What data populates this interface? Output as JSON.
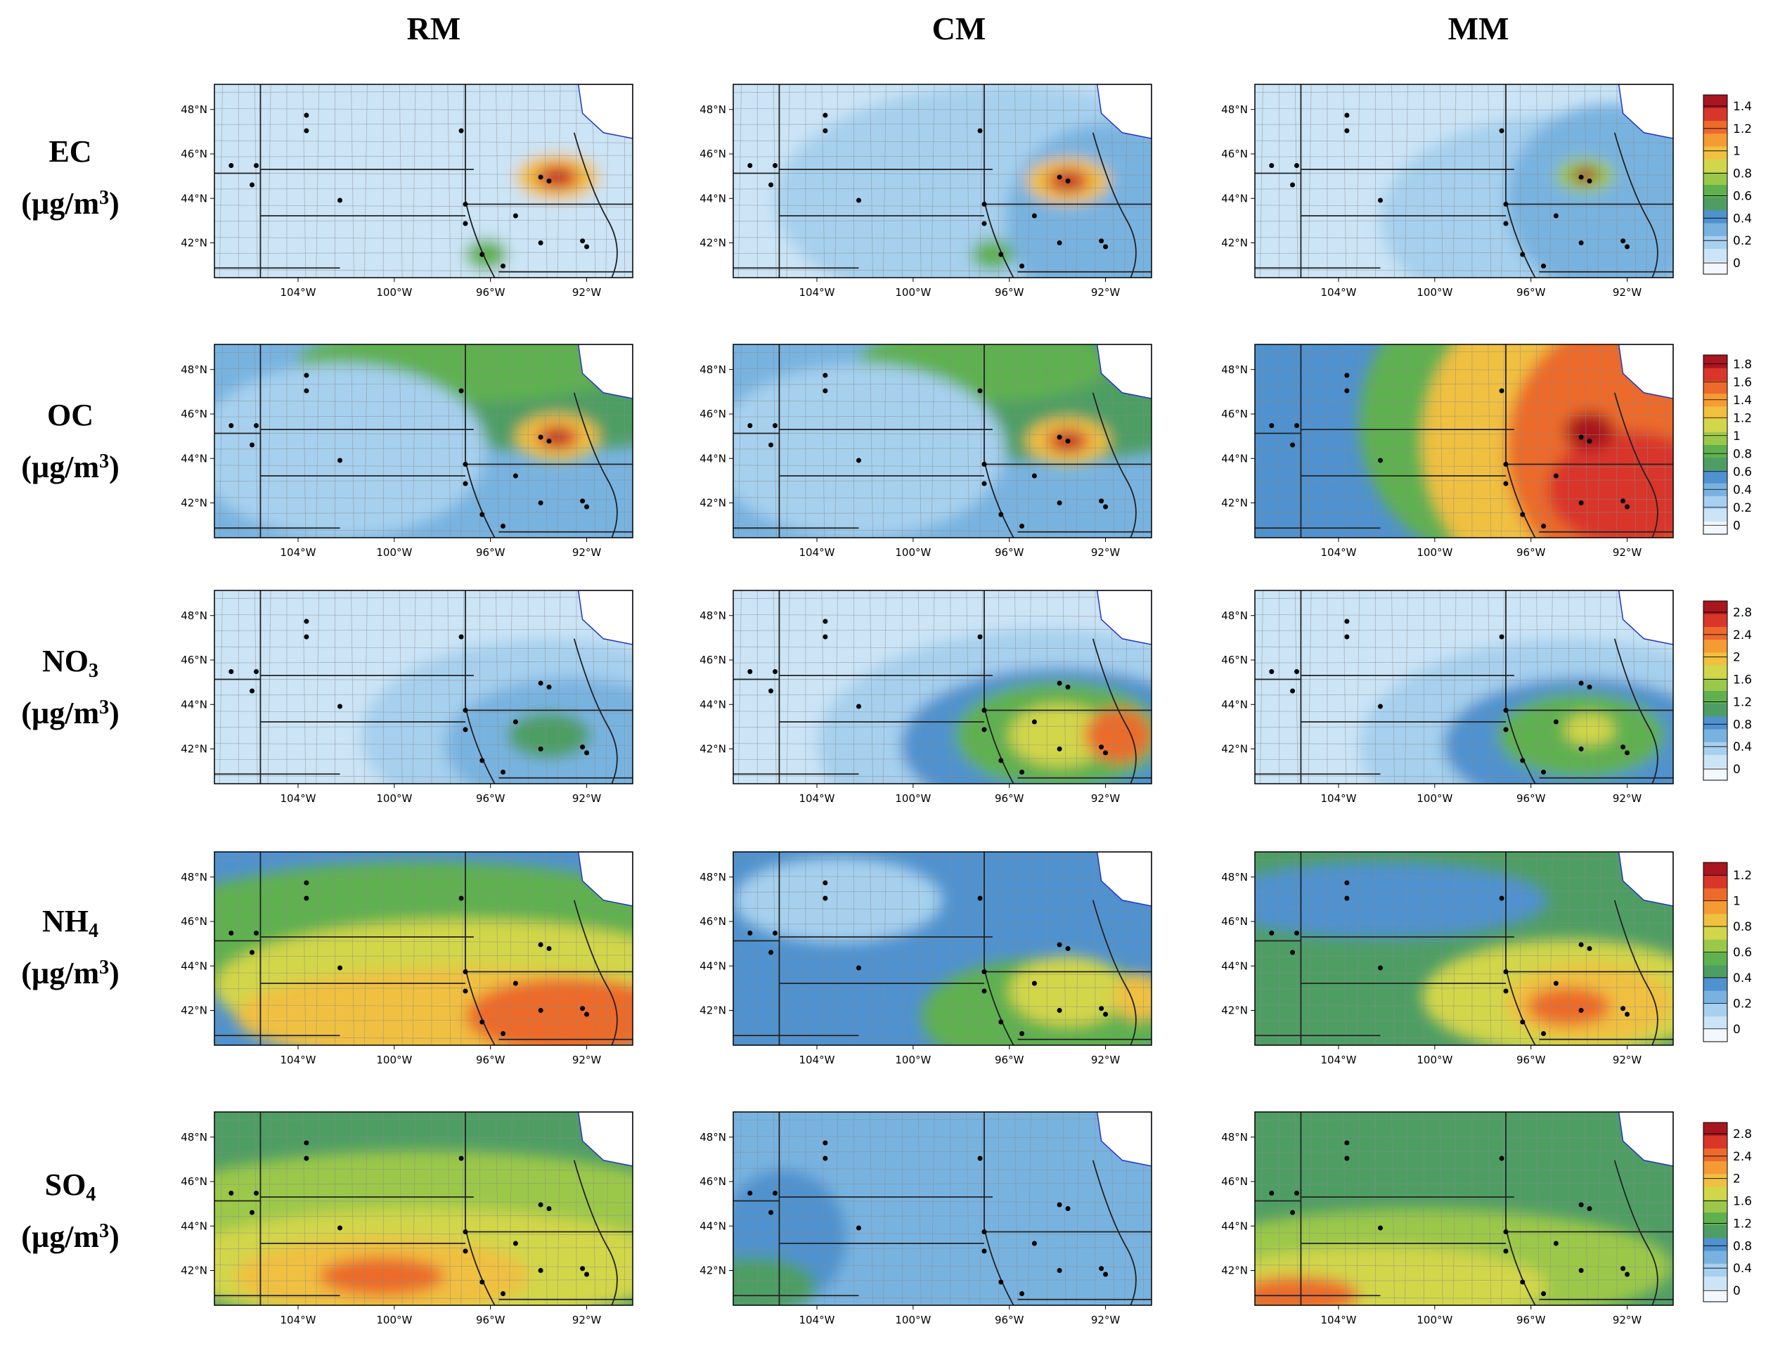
{
  "columns": [
    "RM",
    "CM",
    "MM"
  ],
  "rows": [
    {
      "species": "EC",
      "sub": "",
      "unit_pre": "(µg/m",
      "unit_sup": "3",
      "unit_post": ")"
    },
    {
      "species": "OC",
      "sub": "",
      "unit_pre": "(µg/m",
      "unit_sup": "3",
      "unit_post": ")"
    },
    {
      "species": "NO",
      "sub": "3",
      "unit_pre": "(µg/m",
      "unit_sup": "3",
      "unit_post": ")"
    },
    {
      "species": "NH",
      "sub": "4",
      "unit_pre": "(µg/m",
      "unit_sup": "3",
      "unit_post": ")"
    },
    {
      "species": "SO",
      "sub": "4",
      "unit_pre": "(µg/m",
      "unit_sup": "3",
      "unit_post": ")"
    }
  ],
  "lat_ticks": [
    "48°N",
    "46°N",
    "44°N",
    "42°N"
  ],
  "lon_ticks": [
    "104°W",
    "100°W",
    "96°W",
    "92°W"
  ],
  "colorbars": [
    {
      "labels": [
        "1.4",
        "1.2",
        "1",
        "0.8",
        "0.6",
        "0.4",
        "0.2",
        "0"
      ]
    },
    {
      "labels": [
        "1.8",
        "1.6",
        "1.4",
        "1.2",
        "1",
        "0.8",
        "0.6",
        "0.4",
        "0.2",
        "0"
      ]
    },
    {
      "labels": [
        "2.8",
        "2.4",
        "2",
        "1.6",
        "1.2",
        "0.8",
        "0.4",
        "0"
      ]
    },
    {
      "labels": [
        "1.2",
        "1",
        "0.8",
        "0.6",
        "0.4",
        "0.2",
        "0"
      ]
    },
    {
      "labels": [
        "2.8",
        "2.4",
        "2",
        "1.6",
        "1.2",
        "0.8",
        "0.4",
        "0"
      ]
    }
  ],
  "colorscale": [
    "#f2f8fd",
    "#cbe4f6",
    "#a6d0ee",
    "#78b3e0",
    "#4f92cf",
    "#4e9e64",
    "#5fb14f",
    "#9bc84a",
    "#d2d64a",
    "#f0c040",
    "#f59b34",
    "#ec6a2c",
    "#d9362a",
    "#a8161f"
  ],
  "panels": [
    [
      {
        "base": 1,
        "blobs": [
          [
            0.78,
            0.75,
            0.45,
            0.55,
            1
          ],
          [
            0.55,
            0.55,
            0.3,
            0.5,
            1
          ],
          [
            0.82,
            0.48,
            0.1,
            0.12,
            9
          ],
          [
            0.82,
            0.48,
            0.05,
            0.06,
            12
          ],
          [
            0.82,
            0.48,
            0.02,
            0.03,
            13
          ],
          [
            0.65,
            0.88,
            0.05,
            0.08,
            6
          ]
        ]
      },
      {
        "base": 1,
        "blobs": [
          [
            0.65,
            0.6,
            0.55,
            0.6,
            2
          ],
          [
            0.9,
            0.7,
            0.25,
            0.5,
            3
          ],
          [
            0.8,
            0.5,
            0.1,
            0.12,
            9
          ],
          [
            0.8,
            0.5,
            0.05,
            0.06,
            12
          ],
          [
            0.8,
            0.5,
            0.02,
            0.03,
            13
          ],
          [
            0.62,
            0.88,
            0.05,
            0.08,
            6
          ]
        ]
      },
      {
        "base": 1,
        "blobs": [
          [
            0.75,
            0.7,
            0.45,
            0.55,
            2
          ],
          [
            0.85,
            0.6,
            0.25,
            0.5,
            3
          ],
          [
            0.79,
            0.47,
            0.07,
            0.09,
            7
          ],
          [
            0.79,
            0.47,
            0.03,
            0.04,
            13
          ]
        ]
      }
    ],
    [
      {
        "base": 3,
        "blobs": [
          [
            0.8,
            0.2,
            0.5,
            0.35,
            5
          ],
          [
            0.6,
            0.1,
            0.4,
            0.2,
            6
          ],
          [
            0.3,
            0.55,
            0.35,
            0.45,
            2
          ],
          [
            0.82,
            0.48,
            0.1,
            0.12,
            9
          ],
          [
            0.82,
            0.48,
            0.05,
            0.06,
            12
          ],
          [
            0.82,
            0.48,
            0.02,
            0.03,
            13
          ]
        ]
      },
      {
        "base": 3,
        "blobs": [
          [
            0.75,
            0.25,
            0.5,
            0.35,
            5
          ],
          [
            0.6,
            0.1,
            0.3,
            0.2,
            6
          ],
          [
            0.3,
            0.55,
            0.35,
            0.45,
            2
          ],
          [
            0.8,
            0.5,
            0.1,
            0.12,
            9
          ],
          [
            0.8,
            0.5,
            0.05,
            0.06,
            12
          ],
          [
            0.8,
            0.5,
            0.02,
            0.03,
            13
          ]
        ]
      },
      {
        "base": 4,
        "blobs": [
          [
            0.55,
            0.4,
            0.3,
            0.7,
            6
          ],
          [
            0.75,
            0.5,
            0.35,
            0.8,
            9
          ],
          [
            0.9,
            0.55,
            0.3,
            0.7,
            11
          ],
          [
            0.9,
            0.75,
            0.2,
            0.3,
            12
          ],
          [
            0.8,
            0.45,
            0.06,
            0.1,
            13
          ]
        ]
      }
    ],
    [
      {
        "base": 1,
        "blobs": [
          [
            0.8,
            0.75,
            0.45,
            0.5,
            2
          ],
          [
            0.85,
            0.8,
            0.3,
            0.35,
            3
          ],
          [
            0.8,
            0.75,
            0.1,
            0.12,
            5
          ]
        ]
      },
      {
        "base": 1,
        "blobs": [
          [
            0.75,
            0.8,
            0.55,
            0.6,
            2
          ],
          [
            0.78,
            0.8,
            0.38,
            0.4,
            4
          ],
          [
            0.78,
            0.75,
            0.25,
            0.28,
            6
          ],
          [
            0.78,
            0.75,
            0.12,
            0.16,
            8
          ],
          [
            0.92,
            0.75,
            0.08,
            0.14,
            11
          ]
        ]
      },
      {
        "base": 1,
        "blobs": [
          [
            0.75,
            0.8,
            0.5,
            0.55,
            2
          ],
          [
            0.78,
            0.8,
            0.33,
            0.35,
            4
          ],
          [
            0.78,
            0.75,
            0.2,
            0.22,
            6
          ],
          [
            0.8,
            0.72,
            0.06,
            0.08,
            8
          ]
        ]
      }
    ],
    [
      {
        "base": 4,
        "blobs": [
          [
            0.5,
            0.45,
            0.7,
            0.4,
            6
          ],
          [
            0.6,
            0.7,
            0.6,
            0.35,
            8
          ],
          [
            0.6,
            0.85,
            0.55,
            0.25,
            9
          ],
          [
            0.85,
            0.85,
            0.25,
            0.2,
            11
          ]
        ]
      },
      {
        "base": 4,
        "blobs": [
          [
            0.25,
            0.25,
            0.25,
            0.22,
            2
          ],
          [
            0.75,
            0.85,
            0.3,
            0.3,
            6
          ],
          [
            0.8,
            0.72,
            0.14,
            0.18,
            8
          ],
          [
            0.97,
            0.75,
            0.06,
            0.12,
            9
          ]
        ]
      },
      {
        "base": 5,
        "blobs": [
          [
            0.3,
            0.25,
            0.4,
            0.2,
            4
          ],
          [
            0.75,
            0.75,
            0.35,
            0.3,
            8
          ],
          [
            0.8,
            0.78,
            0.2,
            0.2,
            9
          ],
          [
            0.75,
            0.8,
            0.1,
            0.1,
            11
          ]
        ]
      }
    ],
    [
      {
        "base": 5,
        "blobs": [
          [
            0.5,
            0.55,
            0.7,
            0.35,
            7
          ],
          [
            0.5,
            0.8,
            0.6,
            0.3,
            8
          ],
          [
            0.4,
            0.85,
            0.35,
            0.2,
            9
          ],
          [
            0.4,
            0.85,
            0.15,
            0.1,
            11
          ]
        ]
      },
      {
        "base": 3,
        "blobs": [
          [
            0.12,
            0.65,
            0.15,
            0.35,
            4
          ],
          [
            0.05,
            0.9,
            0.15,
            0.15,
            5
          ]
        ]
      },
      {
        "base": 5,
        "blobs": [
          [
            0.4,
            0.8,
            0.6,
            0.3,
            7
          ],
          [
            0.3,
            0.9,
            0.4,
            0.2,
            8
          ],
          [
            0.1,
            0.95,
            0.15,
            0.1,
            11
          ]
        ]
      }
    ]
  ]
}
